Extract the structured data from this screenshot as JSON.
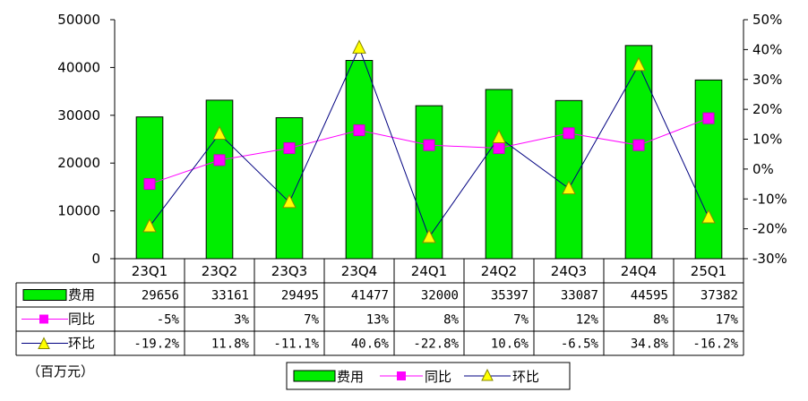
{
  "unit_label": "（百万元）",
  "chart_data": {
    "type": "bar",
    "categories": [
      "23Q1",
      "23Q2",
      "23Q3",
      "23Q4",
      "24Q1",
      "24Q2",
      "24Q3",
      "24Q4",
      "25Q1"
    ],
    "ylim": [
      0,
      50000
    ],
    "yticks": [
      "0",
      "10000",
      "20000",
      "30000",
      "40000",
      "50000"
    ],
    "y2lim": [
      -30,
      50
    ],
    "y2ticks": [
      "-30%",
      "-20%",
      "-10%",
      "0%",
      "10%",
      "20%",
      "30%",
      "40%",
      "50%"
    ],
    "series": [
      {
        "name": "费用",
        "kind": "bar",
        "color": "#00ee00",
        "values": [
          29656,
          33161,
          29495,
          41477,
          32000,
          35397,
          33087,
          44595,
          37382
        ],
        "labels": [
          "29656",
          "33161",
          "29495",
          "41477",
          "32000",
          "35397",
          "33087",
          "44595",
          "37382"
        ]
      },
      {
        "name": "同比",
        "kind": "line",
        "color": "#ff00ff",
        "marker": "square",
        "values": [
          -5,
          3,
          7,
          13,
          8,
          7,
          12,
          8,
          17
        ],
        "labels": [
          "-5%",
          "3%",
          "7%",
          "13%",
          "8%",
          "7%",
          "12%",
          "8%",
          "17%"
        ]
      },
      {
        "name": "环比",
        "kind": "line",
        "color": "#000080",
        "marker_color": "#ffff00",
        "marker": "triangle",
        "values": [
          -19.2,
          11.8,
          -11.1,
          40.6,
          -22.8,
          10.6,
          -6.5,
          34.8,
          -16.2
        ],
        "labels": [
          "-19.2%",
          "11.8%",
          "-11.1%",
          "40.6%",
          "-22.8%",
          "10.6%",
          "-6.5%",
          "34.8%",
          "-16.2%"
        ]
      }
    ],
    "legend_position": "bottom",
    "grid": false
  }
}
